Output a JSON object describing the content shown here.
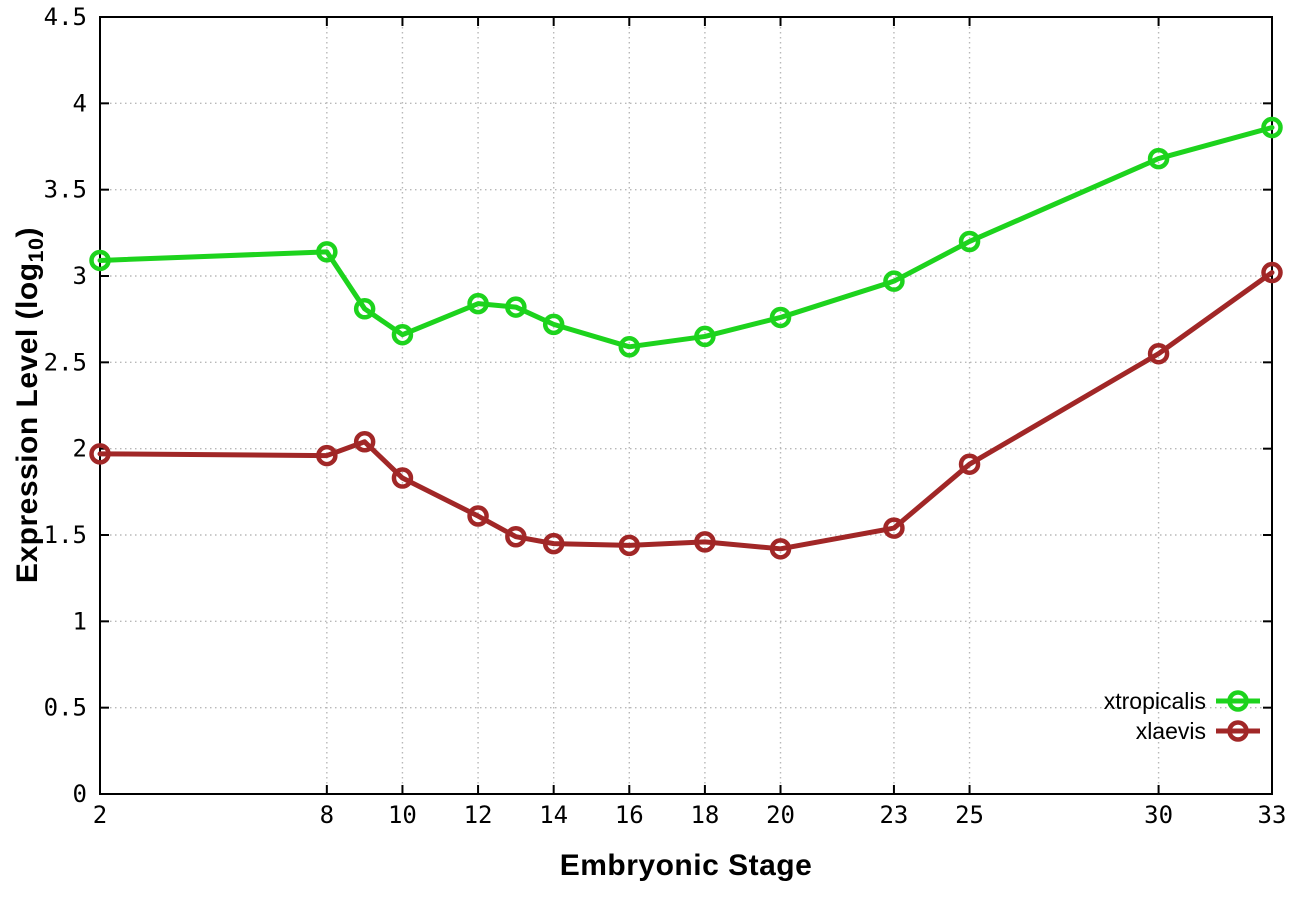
{
  "figure": {
    "x_axis_title": "Embryonic Stage",
    "y_axis_title_main": "Expression Level (log",
    "y_axis_title_sub": "10",
    "y_axis_title_end": ")"
  },
  "chart_data": {
    "type": "line",
    "title": "",
    "xlabel": "Embryonic Stage",
    "ylabel": "Expression Level (log10)",
    "x": [
      2,
      8,
      9,
      10,
      12,
      13,
      14,
      16,
      18,
      20,
      23,
      25,
      30,
      33
    ],
    "series": [
      {
        "name": "xtropicalis",
        "color": "#1dd31d",
        "values": [
          3.09,
          3.14,
          2.81,
          2.66,
          2.84,
          2.82,
          2.72,
          2.59,
          2.65,
          2.76,
          2.97,
          3.2,
          3.68,
          3.86
        ]
      },
      {
        "name": "xlaevis",
        "color": "#a12727",
        "values": [
          1.97,
          1.96,
          2.04,
          1.83,
          1.61,
          1.49,
          1.45,
          1.44,
          1.46,
          1.42,
          1.54,
          1.91,
          2.55,
          3.02
        ]
      }
    ],
    "xlim": [
      2,
      33
    ],
    "ylim": [
      0,
      4.5
    ],
    "xticks": [
      2,
      8,
      10,
      12,
      14,
      16,
      18,
      20,
      23,
      25,
      30,
      33
    ],
    "xtick_labels": [
      "2",
      "8",
      "10",
      "12",
      "14",
      "16",
      "18",
      "20",
      "23",
      "25",
      "30",
      "33"
    ],
    "yticks": [
      0,
      0.5,
      1,
      1.5,
      2,
      2.5,
      3,
      3.5,
      4,
      4.5
    ],
    "ytick_labels": [
      "0",
      "0.5",
      "1",
      "1.5",
      "2",
      "2.5",
      "3",
      "3.5",
      "4",
      "4.5"
    ],
    "grid": true,
    "legend_position": "bottom-right",
    "marker": "open-circle",
    "line_width": 5,
    "grid_color": "#b8b8b8",
    "border_color": "#000000"
  }
}
